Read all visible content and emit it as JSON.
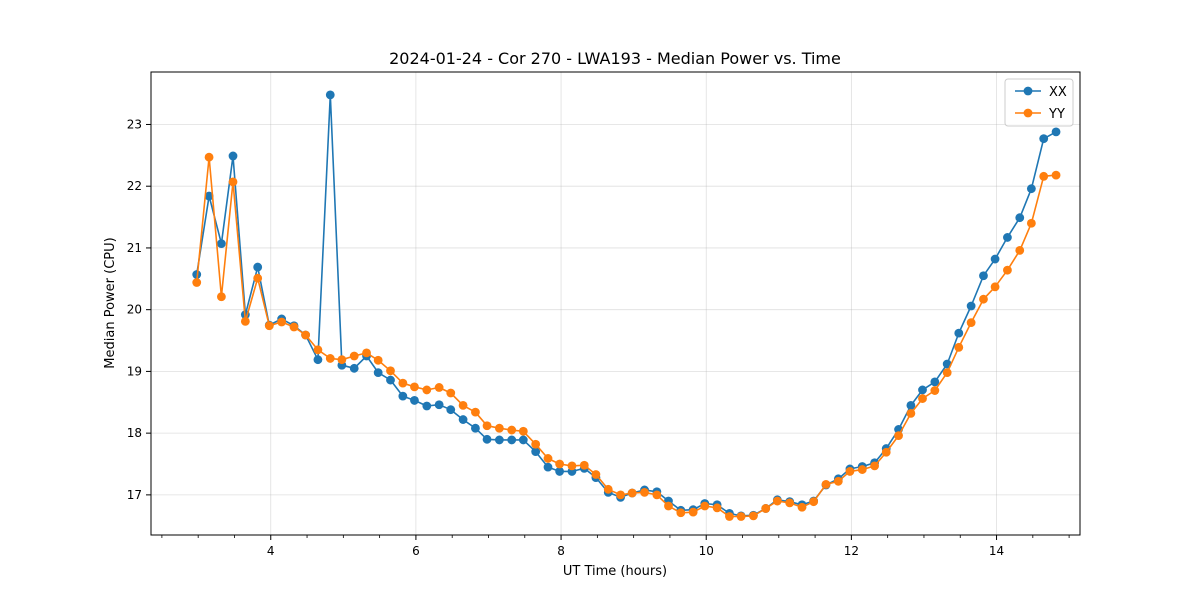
{
  "chart_data": {
    "type": "line",
    "title": "2024-01-24 - Cor 270 - LWA193 - Median Power vs. Time",
    "xlabel": "UT Time (hours)",
    "ylabel": "Median Power (CPU)",
    "xlim": [
      2.35,
      15.15
    ],
    "ylim": [
      16.35,
      23.85
    ],
    "xticks": [
      4,
      6,
      8,
      10,
      12,
      14
    ],
    "yticks": [
      17,
      18,
      19,
      20,
      21,
      22,
      23
    ],
    "grid": true,
    "legend_position": "top-right",
    "x": [
      2.98,
      3.15,
      3.32,
      3.48,
      3.65,
      3.82,
      3.98,
      4.15,
      4.32,
      4.48,
      4.65,
      4.82,
      4.98,
      5.15,
      5.32,
      5.48,
      5.65,
      5.82,
      5.98,
      6.15,
      6.32,
      6.48,
      6.65,
      6.82,
      6.98,
      7.15,
      7.32,
      7.48,
      7.65,
      7.82,
      7.98,
      8.15,
      8.32,
      8.48,
      8.65,
      8.82,
      8.98,
      9.15,
      9.32,
      9.48,
      9.65,
      9.82,
      9.98,
      10.15,
      10.32,
      10.48,
      10.65,
      10.82,
      10.98,
      11.15,
      11.32,
      11.48,
      11.65,
      11.82,
      11.98,
      12.15,
      12.32,
      12.48,
      12.65,
      12.82,
      12.98,
      13.15,
      13.32,
      13.48,
      13.65,
      13.82,
      13.98,
      14.15,
      14.32,
      14.48,
      14.65,
      14.82
    ],
    "series": [
      {
        "name": "XX",
        "color": "#1f77b4",
        "values": [
          20.57,
          21.84,
          21.07,
          22.49,
          19.92,
          20.69,
          19.75,
          19.85,
          19.74,
          19.59,
          19.19,
          23.48,
          19.1,
          19.05,
          19.25,
          18.98,
          18.86,
          18.6,
          18.53,
          18.44,
          18.46,
          18.38,
          18.22,
          18.08,
          17.9,
          17.89,
          17.89,
          17.89,
          17.7,
          17.45,
          17.38,
          17.38,
          17.43,
          17.28,
          17.04,
          16.96,
          17.03,
          17.08,
          17.05,
          16.9,
          16.75,
          16.76,
          16.86,
          16.84,
          16.7,
          16.66,
          16.67,
          16.78,
          16.92,
          16.89,
          16.84,
          16.9,
          17.16,
          17.26,
          17.42,
          17.46,
          17.52,
          17.75,
          18.06,
          18.45,
          18.7,
          18.83,
          19.12,
          19.62,
          20.06,
          20.55,
          20.82,
          21.17,
          21.49,
          21.96,
          22.77,
          22.88
        ]
      },
      {
        "name": "YY",
        "color": "#ff7f0e",
        "values": [
          20.44,
          22.47,
          20.21,
          22.07,
          19.81,
          20.51,
          19.74,
          19.8,
          19.72,
          19.59,
          19.35,
          19.21,
          19.19,
          19.25,
          19.3,
          19.18,
          19.01,
          18.81,
          18.75,
          18.7,
          18.74,
          18.65,
          18.45,
          18.34,
          18.12,
          18.08,
          18.05,
          18.03,
          17.82,
          17.59,
          17.5,
          17.47,
          17.48,
          17.33,
          17.09,
          17.0,
          17.03,
          17.04,
          17.0,
          16.82,
          16.71,
          16.72,
          16.82,
          16.79,
          16.65,
          16.65,
          16.66,
          16.78,
          16.9,
          16.87,
          16.8,
          16.89,
          17.17,
          17.22,
          17.38,
          17.41,
          17.47,
          17.69,
          17.96,
          18.32,
          18.56,
          18.69,
          18.98,
          19.39,
          19.79,
          20.17,
          20.37,
          20.64,
          20.96,
          21.4,
          22.16,
          22.18
        ]
      }
    ]
  }
}
